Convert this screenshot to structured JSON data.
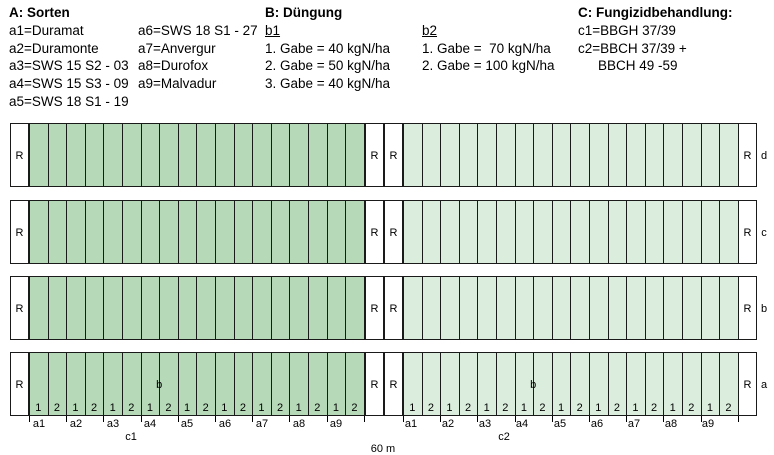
{
  "legend": {
    "a": {
      "title": "A: Sorten",
      "col1": [
        "a1=Duramat",
        "a2=Duramonte",
        "a3=SWS 15 S2 - 03",
        "a4=SWS 15 S3 - 09",
        "a5=SWS 18 S1 - 19"
      ],
      "col2": [
        "a6=SWS 18 S1 - 27",
        "a7=Anvergur",
        "a8=Durofox",
        "a9=Malvadur"
      ]
    },
    "b": {
      "title": "B: Düngung",
      "b1_label": "b1",
      "b1_items": [
        "1. Gabe = 40 kgN/ha",
        "2. Gabe = 50 kgN/ha",
        "3. Gabe = 40 kgN/ha"
      ],
      "b2_label": "b2",
      "b2_items": [
        "1. Gabe =  70 kgN/ha",
        "2. Gabe = 100 kgN/ha"
      ]
    },
    "c": {
      "title": "C: Fungizidbehandlung:",
      "items": [
        "c1=BBGH 37/39",
        "c2=BBCH 37/39 +",
        "BBCH 49 -59"
      ]
    }
  },
  "field": {
    "border_label": "R",
    "rep_labels": [
      "d",
      "c",
      "b",
      "a"
    ],
    "inner_label": "b",
    "plot_numbers": [
      "1",
      "2"
    ],
    "variety_labels": [
      "a1",
      "a2",
      "a3",
      "a4",
      "a5",
      "a6",
      "a7",
      "a8",
      "a9"
    ],
    "block_labels": [
      "c1",
      "c2"
    ],
    "width_label": "60 m",
    "colors": {
      "dark": "#b6d9b8",
      "light": "#dbeedd",
      "border": "#1a1a1a"
    }
  }
}
